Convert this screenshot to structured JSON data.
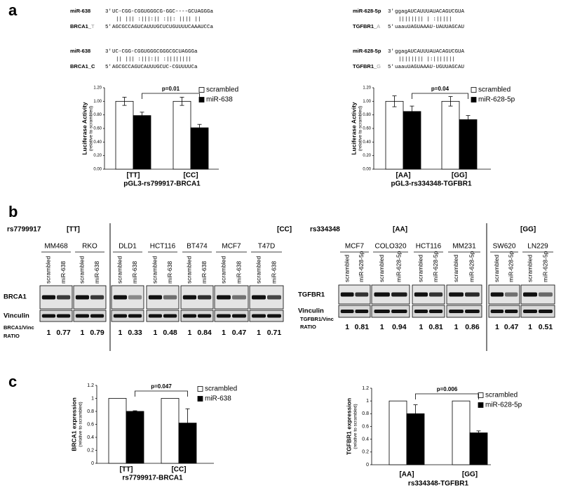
{
  "panel_labels": [
    "a",
    "b",
    "c"
  ],
  "alignments": [
    {
      "mirna": "miR-638",
      "mirna_end": "3'",
      "mirna_seq": "UC-CGG-CGGUGGGCG-GGC----GCUAGGGa",
      "pairing": "|| ||| :|||:||  :||:  ||||  ||",
      "target": "BRCA1_",
      "allele": "T",
      "target_end": "5'",
      "target_seq": "AGCGCCAGUCAUUUGCUCUGUUUUCAAAUCCa"
    },
    {
      "mirna": "miR-638",
      "mirna_end": "3'",
      "mirna_seq": "UC-CGG-CGGUGGGCGGGCGCUAGGGa",
      "pairing": "|| ||| :|||:||  :||||||||",
      "target": "BRCA1_",
      "allele": "C",
      "target_end": "5'",
      "target_seq": "AGCGCCAGUCAUUUGCUC-CGUUUUCa"
    },
    {
      "mirna": "miR-628-5p",
      "mirna_end": "3'",
      "mirna_seq": "ggagAUCAUUUAUACAGUCGUA",
      "pairing": "||||||||  | :|||||",
      "target": "TGFBR1_",
      "allele": "A",
      "target_end": "5'",
      "target_seq": "uaauUAGUAAAU-UAUUAGCAU"
    },
    {
      "mirna": "miR-628-5p",
      "mirna_end": "3'",
      "mirna_seq": "ggagAUCAUUUAUACAGUCGUA",
      "pairing": "||||||||  |:|||||||",
      "target": "TGFBR1_",
      "allele": "G",
      "target_end": "5'",
      "target_seq": "uaauUAGUAAAU-UGUUAGCAU"
    }
  ],
  "chart_data": [
    {
      "type": "bar",
      "categories": [
        "[TT]",
        "[CC]"
      ],
      "category_colors": [
        "#999999",
        "#000000"
      ],
      "series": [
        {
          "name": "scrambled",
          "color": "#ffffff",
          "values": [
            1,
            1
          ],
          "errors": [
            0.06,
            0.06
          ]
        },
        {
          "name": "miR-638",
          "color": "#000000",
          "values": [
            0.79,
            0.61
          ],
          "errors": [
            0.05,
            0.05
          ]
        }
      ],
      "ylim": [
        0,
        1.2
      ],
      "yticks": [
        {
          "value": 0,
          "label": "0.00"
        },
        {
          "value": 0.2,
          "label": "0.20"
        },
        {
          "value": 0.4,
          "label": "0.40"
        },
        {
          "value": 0.6,
          "label": "0.60"
        },
        {
          "value": 0.8,
          "label": "0.80"
        },
        {
          "value": 1,
          "label": "1.00"
        },
        {
          "value": 1.2,
          "label": "1.20"
        }
      ],
      "ylabel": "Luciferase Activity",
      "ylabel_sub": "(relative to scrambled)",
      "xlabel": "pGL3-rs799917-BRCA1",
      "annotation": "p=0.01"
    },
    {
      "type": "bar",
      "categories": [
        "[AA]",
        "[GG]"
      ],
      "category_colors": [
        "#999999",
        "#000000"
      ],
      "series": [
        {
          "name": "scrambled",
          "color": "#ffffff",
          "values": [
            1,
            1
          ],
          "errors": [
            0.08,
            0.07
          ]
        },
        {
          "name": "miR-628-5p",
          "color": "#000000",
          "values": [
            0.85,
            0.73
          ],
          "errors": [
            0.08,
            0.06
          ]
        }
      ],
      "ylim": [
        0,
        1.2
      ],
      "yticks": [
        {
          "value": 0,
          "label": "0.00"
        },
        {
          "value": 0.2,
          "label": "0.20"
        },
        {
          "value": 0.4,
          "label": "0.40"
        },
        {
          "value": 0.6,
          "label": "0.60"
        },
        {
          "value": 0.8,
          "label": "0.80"
        },
        {
          "value": 1,
          "label": "1.00"
        },
        {
          "value": 1.2,
          "label": "1.20"
        }
      ],
      "ylabel": "Luciferase Activity",
      "ylabel_sub": "(relative to scrambled)",
      "xlabel": "pGL3-rs334348-TGFBR1",
      "annotation": "p=0.04"
    },
    {
      "type": "bar",
      "categories": [
        "[TT]",
        "[CC]"
      ],
      "category_colors": [
        "#999999",
        "#000000"
      ],
      "series": [
        {
          "name": "scrambled",
          "color": "#ffffff",
          "values": [
            1,
            1
          ]
        },
        {
          "name": "miR-638",
          "color": "#000000",
          "values": [
            0.8,
            0.62
          ],
          "errors": [
            0.01,
            0.22
          ]
        }
      ],
      "ylim": [
        0,
        1.2
      ],
      "yticks": [
        0,
        0.2,
        0.4,
        0.6,
        0.8,
        1,
        1.2
      ],
      "ylabel": "BRCA1 expression",
      "ylabel_sub": "(relative to scrambled)",
      "xlabel": "rs7799917-BRCA1",
      "annotation": "p=0.047"
    },
    {
      "type": "bar",
      "categories": [
        "[AA]",
        "[GG]"
      ],
      "category_colors": [
        "#999999",
        "#000000"
      ],
      "series": [
        {
          "name": "scrambled",
          "color": "#ffffff",
          "values": [
            1,
            1
          ]
        },
        {
          "name": "miR-628-5p",
          "color": "#000000",
          "values": [
            0.8,
            0.5
          ],
          "errors": [
            0.14,
            0.03
          ]
        }
      ],
      "ylim": [
        0,
        1.2
      ],
      "yticks": [
        0,
        0.2,
        0.4,
        0.6,
        0.8,
        1,
        1.2
      ],
      "ylabel": "TGFBR1 expression",
      "ylabel_sub": "(relative to scrambled)",
      "xlabel": "rs334348-TGFBR1",
      "annotation": "p=0.006"
    }
  ],
  "blots": [
    {
      "snp": "rs7799917",
      "genotypes": [
        "[TT]",
        "[CC]"
      ],
      "lanes": [
        "scrambled",
        "miR-638"
      ],
      "rows": [
        "BRCA1",
        "Vinculin"
      ],
      "ratio_label": [
        "BRCA1/Vinc",
        "RATIO"
      ],
      "cells": [
        {
          "name": "MM468",
          "ratio": [
            1,
            0.77
          ]
        },
        {
          "name": "RKO",
          "ratio": [
            1,
            0.79
          ]
        },
        {
          "name": "DLD1",
          "ratio": [
            1,
            0.33
          ]
        },
        {
          "name": "HCT116",
          "ratio": [
            1,
            0.48
          ]
        },
        {
          "name": "BT474",
          "ratio": [
            1,
            0.84
          ]
        },
        {
          "name": "MCF7",
          "ratio": [
            1,
            0.47
          ]
        },
        {
          "name": "T47D",
          "ratio": [
            1,
            0.71
          ]
        }
      ]
    },
    {
      "snp": "rs334348",
      "genotypes": [
        "[AA]",
        "[GG]"
      ],
      "lanes": [
        "scrambled",
        "miR-628-5p"
      ],
      "rows": [
        "TGFBR1",
        "Vinculin"
      ],
      "ratio_label": [
        "TGFBR1/Vinc",
        "RATIO"
      ],
      "cells": [
        {
          "name": "MCF7",
          "ratio": [
            1,
            0.81
          ]
        },
        {
          "name": "COLO320",
          "ratio": [
            1,
            0.94
          ]
        },
        {
          "name": "HCT116",
          "ratio": [
            1,
            0.81
          ]
        },
        {
          "name": "MM231",
          "ratio": [
            1,
            0.86
          ]
        },
        {
          "name": "SW620",
          "ratio": [
            1,
            0.47
          ]
        },
        {
          "name": "LN229",
          "ratio": [
            1,
            0.51
          ]
        }
      ]
    }
  ]
}
